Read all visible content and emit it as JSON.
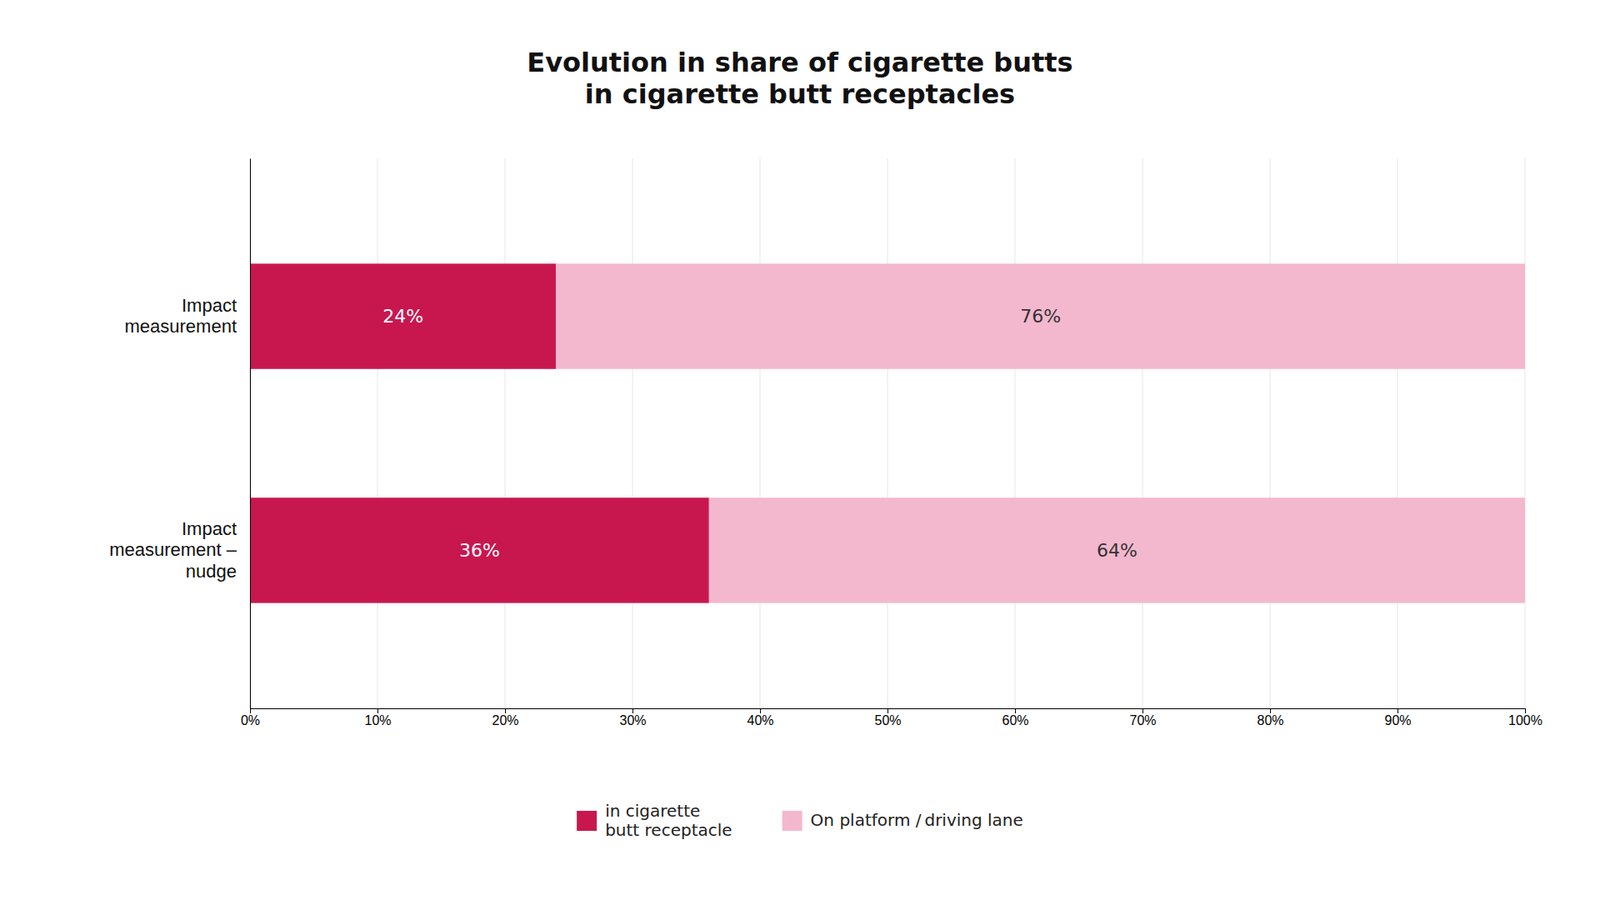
{
  "chart_data": {
    "type": "bar",
    "orientation": "horizontal",
    "stacked": true,
    "data_labels": true,
    "grid": true,
    "legend": "bottom",
    "title": "Evolution in share of cigarette butts\nin cigarette butt receptacles",
    "categories": [
      "Impact\nmeasurement",
      "Impact\nmeasurement –\nnudge"
    ],
    "series": [
      {
        "name": "in cigarette\nbutt receptacle",
        "color": "#C8174F",
        "values": [
          24,
          36
        ],
        "value_labels": [
          "24%",
          "36%"
        ]
      },
      {
        "name": "On platform / driving lane",
        "color": "#F4B8CE",
        "values": [
          76,
          64
        ],
        "value_labels": [
          "76%",
          "64%"
        ]
      }
    ],
    "xlim": [
      0,
      100
    ],
    "xticks": [
      {
        "value": 0,
        "label": "0%"
      },
      {
        "value": 10,
        "label": "10%"
      },
      {
        "value": 20,
        "label": "20%"
      },
      {
        "value": 30,
        "label": "30%"
      },
      {
        "value": 40,
        "label": "40%"
      },
      {
        "value": 50,
        "label": "50%"
      },
      {
        "value": 60,
        "label": "60%"
      },
      {
        "value": 70,
        "label": "70%"
      },
      {
        "value": 80,
        "label": "80%"
      },
      {
        "value": 90,
        "label": "90%"
      },
      {
        "value": 100,
        "label": "100%"
      }
    ]
  }
}
